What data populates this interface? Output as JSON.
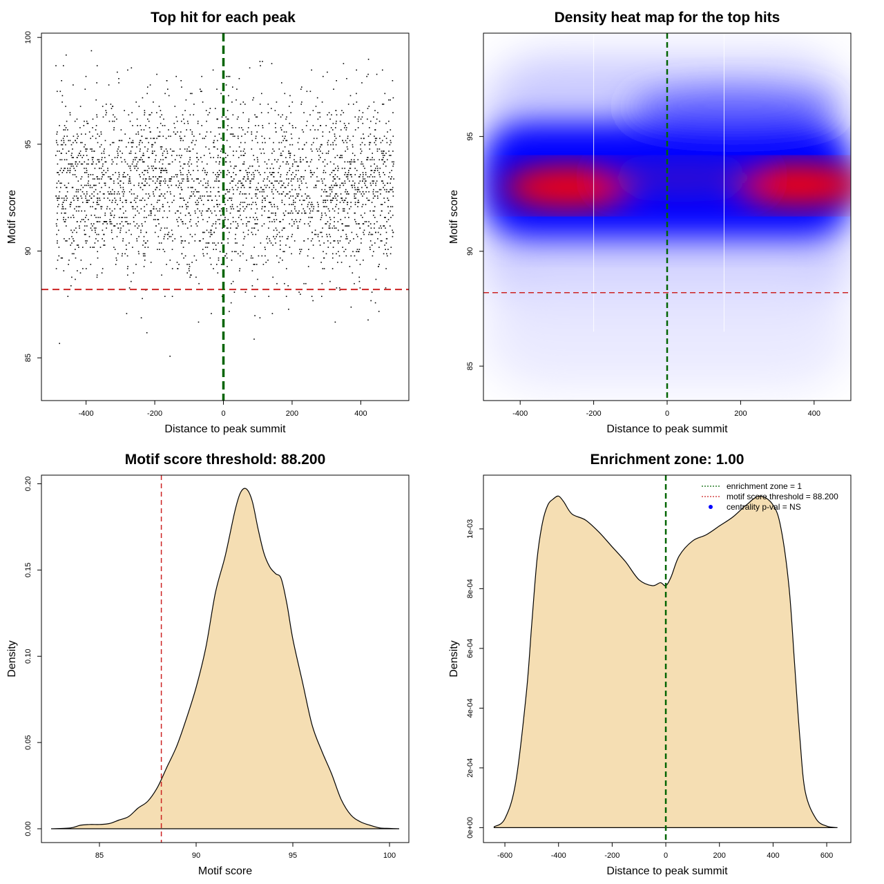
{
  "chart_data": [
    {
      "type": "scatter",
      "title": "Top hit for each peak",
      "xlabel": "Distance to peak summit",
      "ylabel": "Motif score",
      "xlim": [
        -530,
        540
      ],
      "ylim": [
        83,
        100.2
      ],
      "xticks": [
        "-400",
        "-200",
        "0",
        "200",
        "400"
      ],
      "yticks": [
        "85",
        "90",
        "95",
        "100"
      ],
      "summary": {
        "points_approx": 3000,
        "x_range": [
          -490,
          495
        ],
        "y_range": [
          83.5,
          99.5
        ],
        "y_mode": 93
      },
      "annotations": {
        "vline_x": 0,
        "vline_color": "#006400",
        "hline_y": 88.2,
        "hline_color": "#cc2222"
      }
    },
    {
      "type": "heatmap",
      "title": "Density heat map for the top hits",
      "xlabel": "Distance to peak summit",
      "ylabel": "Motif score",
      "xlim": [
        -500,
        500
      ],
      "ylim": [
        83.5,
        99.5
      ],
      "xticks": [
        "-400",
        "-200",
        "0",
        "200",
        "400"
      ],
      "yticks": [
        "85",
        "90",
        "95"
      ],
      "colors": [
        "#ffffff",
        "#0000ff",
        "#ff0000"
      ],
      "hotspots": [
        {
          "x": -270,
          "y": 92.8
        },
        {
          "x": 360,
          "y": 92.9
        }
      ],
      "annotations": {
        "vline_x": 0,
        "vline_color": "#006400",
        "hline_y": 88.2,
        "hline_color": "#cc2222"
      }
    },
    {
      "type": "area",
      "title": "Motif score threshold: 88.200",
      "xlabel": "Motif score",
      "ylabel": "Density",
      "xlim": [
        82,
        101
      ],
      "ylim": [
        -0.008,
        0.205
      ],
      "xticks": [
        "85",
        "90",
        "95",
        "100"
      ],
      "yticks": [
        "0.00",
        "0.05",
        "0.10",
        "0.15",
        "0.20"
      ],
      "fill_color": "#f5deb3",
      "x": [
        82.5,
        83.5,
        84,
        84.5,
        85,
        85.5,
        86,
        86.5,
        87,
        87.5,
        88,
        88.5,
        89,
        89.5,
        90,
        90.5,
        91,
        91.5,
        92,
        92.3,
        92.6,
        92.9,
        93.2,
        93.5,
        93.8,
        94.1,
        94.4,
        94.7,
        95,
        95.5,
        96,
        96.5,
        97,
        97.5,
        98,
        98.5,
        99,
        99.5,
        100,
        100.5
      ],
      "values": [
        0.0,
        0.0005,
        0.002,
        0.0025,
        0.0025,
        0.003,
        0.005,
        0.007,
        0.012,
        0.016,
        0.024,
        0.036,
        0.048,
        0.064,
        0.082,
        0.105,
        0.137,
        0.158,
        0.184,
        0.195,
        0.197,
        0.19,
        0.174,
        0.16,
        0.152,
        0.148,
        0.145,
        0.13,
        0.11,
        0.085,
        0.06,
        0.045,
        0.032,
        0.017,
        0.008,
        0.004,
        0.002,
        0.0005,
        0.0002,
        0.0
      ],
      "annotations": {
        "vline_x": 88.2,
        "vline_color": "#cc2222"
      }
    },
    {
      "type": "area",
      "title": "Enrichment zone: 1.00",
      "xlabel": "Distance to peak summit",
      "ylabel": "Density",
      "xlim": [
        -680,
        690
      ],
      "ylim": [
        -5e-05,
        0.00118
      ],
      "xticks": [
        "-600",
        "-400",
        "-200",
        "0",
        "200",
        "400",
        "600"
      ],
      "yticks": [
        "0e+00",
        "2e-04",
        "4e-04",
        "6e-04",
        "8e-04",
        "1e-03"
      ],
      "fill_color": "#f5deb3",
      "x": [
        -640,
        -600,
        -560,
        -520,
        -500,
        -480,
        -460,
        -440,
        -420,
        -400,
        -380,
        -350,
        -300,
        -250,
        -200,
        -150,
        -100,
        -50,
        -20,
        0,
        20,
        50,
        100,
        150,
        200,
        250,
        300,
        350,
        400,
        430,
        460,
        480,
        500,
        520,
        560,
        600,
        640
      ],
      "values": [
        3e-06,
        3e-05,
        0.00015,
        0.00045,
        0.00068,
        0.0009,
        0.00102,
        0.00108,
        0.0011,
        0.00111,
        0.00109,
        0.00105,
        0.00103,
        0.00099,
        0.00094,
        0.00089,
        0.00083,
        0.00081,
        0.00082,
        0.00081,
        0.00084,
        0.00091,
        0.00096,
        0.00098,
        0.00101,
        0.00104,
        0.00108,
        0.00111,
        0.00108,
        0.001,
        0.0008,
        0.00055,
        0.0003,
        0.00012,
        3e-05,
        5e-06,
        0.0
      ],
      "annotations": {
        "vline_x": 0,
        "vline_color": "#006400"
      },
      "legend": {
        "position": "top-right",
        "items": [
          {
            "label": "enrichment zone = 1",
            "color": "#006400",
            "style": "dotted-line"
          },
          {
            "label": "motif score threshold = 88.200",
            "color": "#cc2222",
            "style": "dotted-line"
          },
          {
            "label": "centrality p-val = NS",
            "color": "#0000ff",
            "style": "point"
          }
        ]
      }
    }
  ]
}
